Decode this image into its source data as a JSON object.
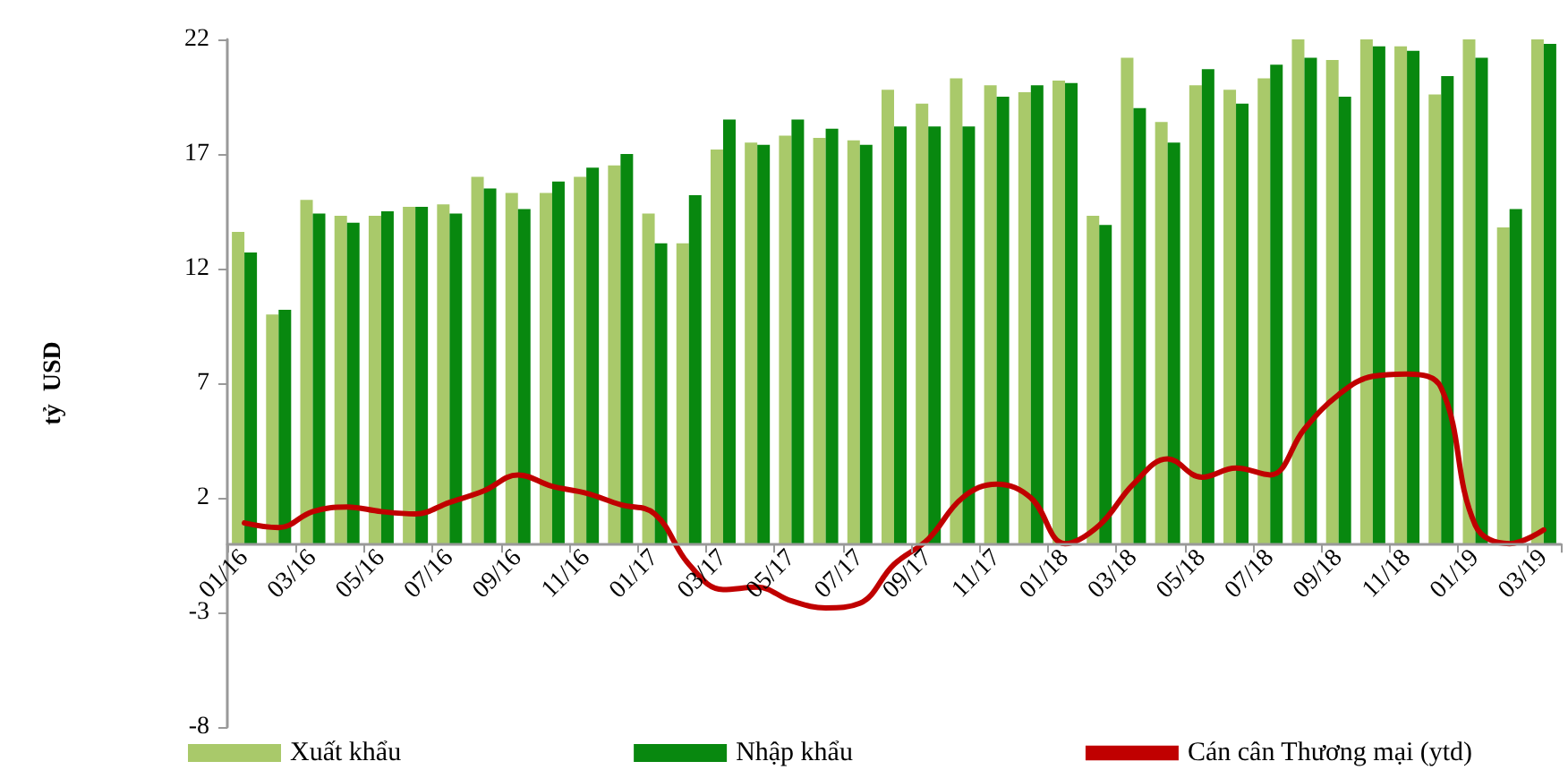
{
  "chart_data": {
    "type": "bar",
    "ylabel": "tỷ  USD",
    "categories": [
      "01/16",
      null,
      "03/16",
      null,
      "05/16",
      null,
      "07/16",
      null,
      "09/16",
      null,
      "11/16",
      null,
      "01/17",
      null,
      "03/17",
      null,
      "05/17",
      null,
      "07/17",
      null,
      "09/17",
      null,
      "11/17",
      null,
      "01/18",
      null,
      "03/18",
      null,
      "05/18",
      null,
      "07/18",
      null,
      "09/18",
      null,
      "11/18",
      null,
      "01/19",
      null,
      "03/19"
    ],
    "series": [
      {
        "name": "Xuất khẩu",
        "color": "#a9c96a",
        "values": [
          13.6,
          10.0,
          15.0,
          14.3,
          14.3,
          14.7,
          14.8,
          16.0,
          15.3,
          15.3,
          16.0,
          16.5,
          14.4,
          13.1,
          17.2,
          17.5,
          17.8,
          17.7,
          17.6,
          19.8,
          19.2,
          20.3,
          20.0,
          19.7,
          20.2,
          14.3,
          21.2,
          18.4,
          20.0,
          19.8,
          20.3,
          22.0,
          21.1,
          22.0,
          21.7,
          19.6,
          22.0,
          13.8,
          22.0
        ]
      },
      {
        "name": "Nhập khẩu",
        "color": "#08880f",
        "values": [
          12.7,
          10.2,
          14.4,
          14.0,
          14.5,
          14.7,
          14.4,
          15.5,
          14.6,
          15.8,
          16.4,
          17.0,
          13.1,
          15.2,
          18.5,
          17.4,
          18.5,
          18.1,
          17.4,
          18.2,
          18.2,
          18.2,
          19.5,
          20.0,
          20.1,
          13.9,
          19.0,
          17.5,
          20.7,
          19.2,
          20.9,
          21.2,
          19.5,
          21.7,
          21.5,
          20.4,
          21.2,
          14.6,
          21.8
        ]
      },
      {
        "name": "Cán cân Thương mại (ytd)",
        "type": "line",
        "color": "#c00000",
        "values": [
          0.9,
          0.7,
          1.4,
          1.6,
          1.4,
          1.3,
          1.8,
          2.3,
          3.0,
          2.5,
          2.2,
          1.7,
          1.3,
          -0.9,
          -2.0,
          -1.9,
          -2.5,
          -2.8,
          -2.6,
          -0.9,
          0.2,
          2.0,
          2.6,
          2.0,
          0.0,
          0.8,
          2.6,
          3.7,
          2.9,
          3.3,
          3.0,
          5.0,
          6.5,
          7.3,
          7.4,
          6.8,
          0.8,
          0.0,
          0.6
        ]
      }
    ],
    "ylim": [
      -8,
      22
    ],
    "yticks": [
      -8,
      -3,
      2,
      7,
      12,
      17,
      22
    ],
    "grid": false,
    "legend": "bottom",
    "marker": "none",
    "line_style": "solid"
  }
}
